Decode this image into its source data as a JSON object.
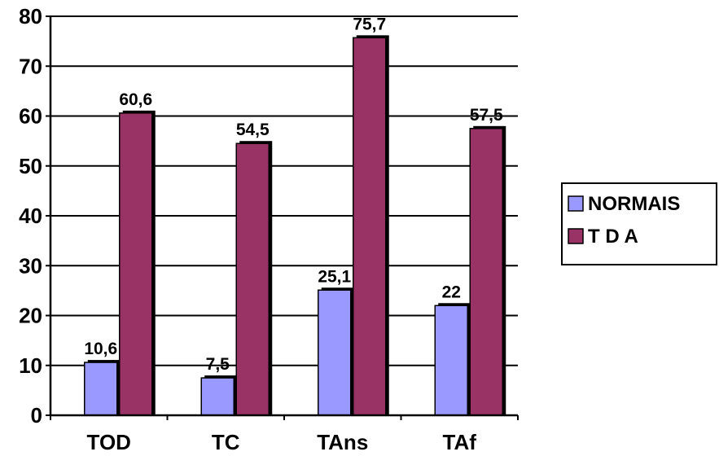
{
  "chart_data": {
    "type": "bar",
    "categories": [
      "TOD",
      "TC",
      "TAns",
      "TAf"
    ],
    "series": [
      {
        "name": "NORMAIS",
        "values": [
          10.6,
          7.5,
          25.1,
          22
        ],
        "labels": [
          "10,6",
          "7,5",
          "25,1",
          "22"
        ],
        "color": "#9999ff"
      },
      {
        "name": "T D A",
        "values": [
          60.6,
          54.5,
          75.7,
          57.5
        ],
        "labels": [
          "60,6",
          "54,5",
          "75,7",
          "57,5"
        ],
        "color": "#993366"
      }
    ],
    "ylim": [
      0,
      80
    ],
    "yticks": [
      0,
      10,
      20,
      30,
      40,
      50,
      60,
      70,
      80
    ],
    "grid": true,
    "legend": "right",
    "title": "",
    "xlabel": "",
    "ylabel": ""
  }
}
